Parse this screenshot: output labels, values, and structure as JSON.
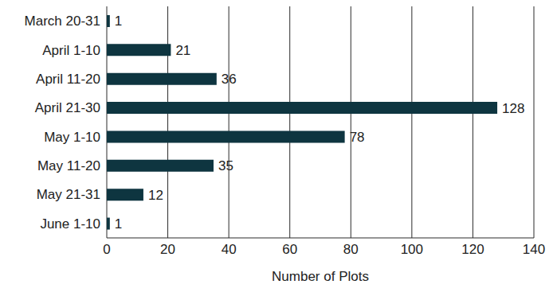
{
  "chart_data": {
    "type": "bar",
    "orientation": "horizontal",
    "categories": [
      "March 20-31",
      "April 1-10",
      "April 11-20",
      "April 21-30",
      "May 1-10",
      "May 11-20",
      "May 21-31",
      "June 1-10"
    ],
    "values": [
      1,
      21,
      36,
      128,
      78,
      35,
      12,
      1
    ],
    "color": "#0e3540",
    "xlabel": "Number of Plots",
    "xlim": [
      0,
      140
    ],
    "xticks": [
      0,
      20,
      40,
      60,
      80,
      100,
      120,
      140
    ],
    "grid": true,
    "data_labels": true
  }
}
